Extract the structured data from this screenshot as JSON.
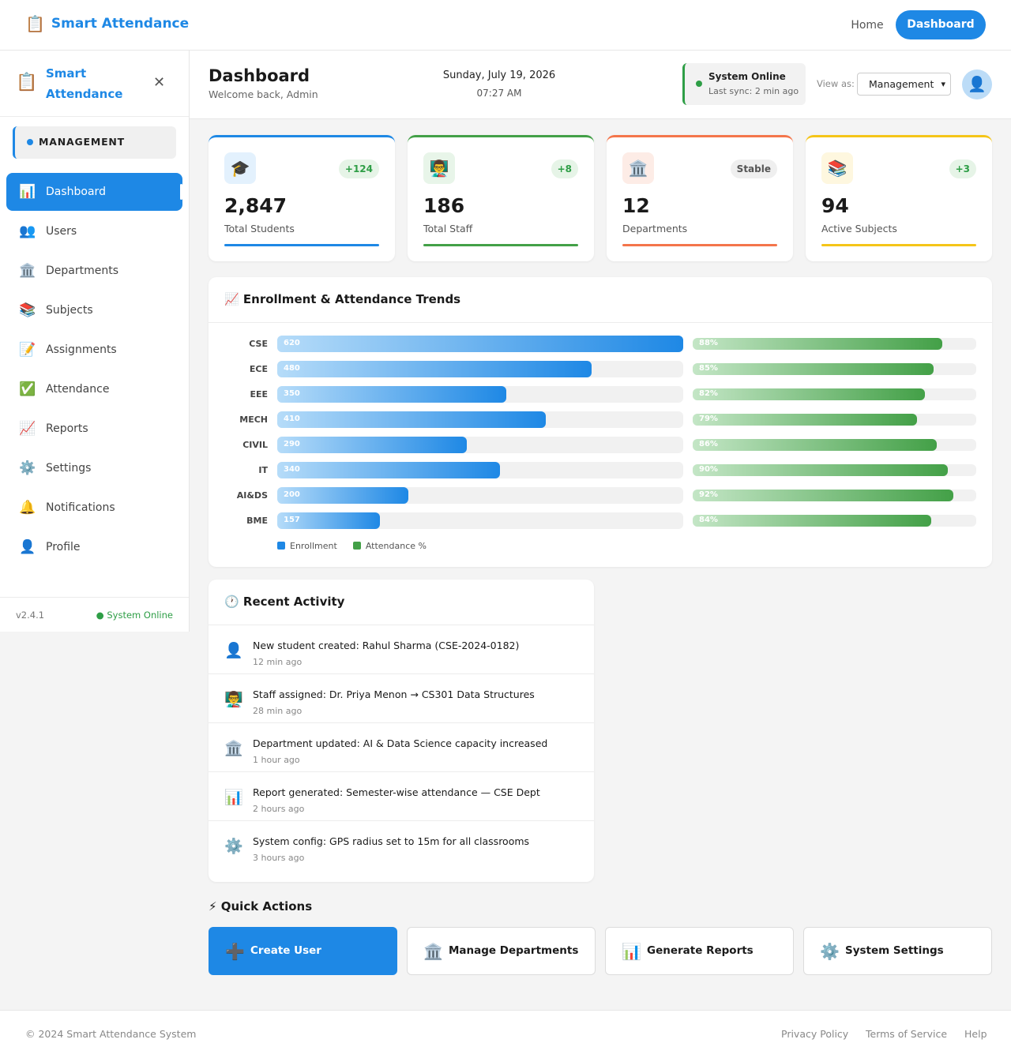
{
  "topnav": {
    "brand_icon": "clipboard-icon",
    "brand": "Smart Attendance",
    "home": "Home",
    "dashboard": "Dashboard"
  },
  "sidebar": {
    "title": "Smart Attendance",
    "close": "✕",
    "role": "MANAGEMENT",
    "items": [
      {
        "icon": "📊",
        "label": "Dashboard",
        "active": true
      },
      {
        "icon": "👥",
        "label": "Users"
      },
      {
        "icon": "🏛️",
        "label": "Departments"
      },
      {
        "icon": "📚",
        "label": "Subjects"
      },
      {
        "icon": "📝",
        "label": "Assignments"
      },
      {
        "icon": "✅",
        "label": "Attendance"
      },
      {
        "icon": "📈",
        "label": "Reports"
      },
      {
        "icon": "⚙️",
        "label": "Settings"
      },
      {
        "icon": "🔔",
        "label": "Notifications"
      },
      {
        "icon": "👤",
        "label": "Profile"
      }
    ],
    "version": "v2.4.1",
    "status": "● System Online"
  },
  "header": {
    "title": "Dashboard",
    "welcome": "Welcome back, Admin",
    "date": "Sunday, July 19, 2026",
    "time": "07:27 AM",
    "status_title": "System Online",
    "status_sub": "Last sync: 2 min ago",
    "view_as_label": "View as:",
    "view_as_value": "Management"
  },
  "stats": [
    {
      "icon": "🎓",
      "badge": "+124",
      "value": "2,847",
      "label": "Total Students",
      "color": "#1e88e5",
      "tint": "#e3f1fd",
      "badge_bg": "#e6f4e7",
      "badge_fg": "#2e9e46"
    },
    {
      "icon": "👨‍🏫",
      "badge": "+8",
      "value": "186",
      "label": "Total Staff",
      "color": "#43a047",
      "tint": "#e8f5e9",
      "badge_bg": "#e6f4e7",
      "badge_fg": "#2e9e46"
    },
    {
      "icon": "🏛️",
      "badge": "Stable",
      "value": "12",
      "label": "Departments",
      "color": "#f4754b",
      "tint": "#fdece6",
      "badge_bg": "#efefef",
      "badge_fg": "#555555"
    },
    {
      "icon": "📚",
      "badge": "+3",
      "value": "94",
      "label": "Active Subjects",
      "color": "#f5c518",
      "tint": "#fef7df",
      "badge_bg": "#e6f4e7",
      "badge_fg": "#2e9e46"
    }
  ],
  "trends": {
    "title": "📈 Enrollment & Attendance Trends",
    "legend_enrollment": "Enrollment",
    "legend_attendance": "Attendance %",
    "colors": {
      "enrollment": "#1e88e5",
      "attendance": "#43a047"
    }
  },
  "chart_data": {
    "type": "bar",
    "categories": [
      "CSE",
      "ECE",
      "EEE",
      "MECH",
      "CIVIL",
      "IT",
      "AI&DS",
      "BME"
    ],
    "series": [
      {
        "name": "Enrollment",
        "values": [
          620,
          480,
          350,
          410,
          290,
          340,
          200,
          157
        ]
      },
      {
        "name": "Attendance %",
        "values": [
          88,
          85,
          82,
          79,
          86,
          90,
          92,
          84
        ]
      }
    ],
    "enrollment_max": 620,
    "attendance_max": 100
  },
  "activity": {
    "title": "🕐 Recent Activity",
    "items": [
      {
        "icon": "👤",
        "text": "New student created: Rahul Sharma (CSE-2024-0182)",
        "time": "12 min ago"
      },
      {
        "icon": "👨‍🏫",
        "text": "Staff assigned: Dr. Priya Menon → CS301 Data Structures",
        "time": "28 min ago"
      },
      {
        "icon": "🏛️",
        "text": "Department updated: AI & Data Science capacity increased",
        "time": "1 hour ago"
      },
      {
        "icon": "📊",
        "text": "Report generated: Semester-wise attendance — CSE Dept",
        "time": "2 hours ago"
      },
      {
        "icon": "⚙️",
        "text": "System config: GPS radius set to 15m for all classrooms",
        "time": "3 hours ago"
      }
    ]
  },
  "quick_actions": {
    "title": "⚡ Quick Actions",
    "items": [
      {
        "icon": "➕",
        "label": "Create User"
      },
      {
        "icon": "🏛️",
        "label": "Manage Departments"
      },
      {
        "icon": "📊",
        "label": "Generate Reports"
      },
      {
        "icon": "⚙️",
        "label": "System Settings"
      }
    ]
  },
  "footer": {
    "copyright": "© 2024 Smart Attendance System",
    "privacy": "Privacy Policy",
    "terms": "Terms of Service",
    "help": "Help"
  }
}
